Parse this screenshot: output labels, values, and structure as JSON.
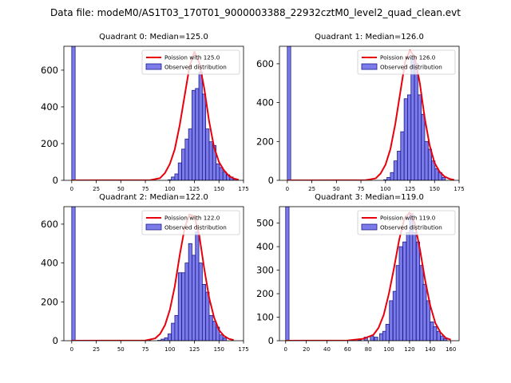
{
  "figure": {
    "suptitle": "Data file: modeM0/AS1T03_170T01_9000003388_22932cztM0_level2_quad_clean.evt"
  },
  "colors": {
    "bar_fill": "#7b7bea",
    "bar_edge": "#1a1a8c",
    "curve": "#e8000b"
  },
  "chart_data": [
    {
      "type": "bar",
      "title": "Quadrant 0: Median=125.0",
      "xlim": [
        -8,
        175
      ],
      "ylim": [
        0,
        730
      ],
      "xticks": [
        0,
        25,
        50,
        75,
        100,
        125,
        150,
        175
      ],
      "yticks": [
        0,
        200,
        400,
        600
      ],
      "bin_width": 3.5,
      "bins": [
        [
          0,
          730
        ],
        [
          98,
          3
        ],
        [
          101.5,
          18
        ],
        [
          105,
          35
        ],
        [
          108.5,
          95
        ],
        [
          112,
          170
        ],
        [
          115.5,
          225
        ],
        [
          119,
          280
        ],
        [
          122.5,
          490
        ],
        [
          126,
          500
        ],
        [
          129.5,
          590
        ],
        [
          133,
          470
        ],
        [
          136.5,
          280
        ],
        [
          140,
          210
        ],
        [
          143.5,
          190
        ],
        [
          147,
          90
        ],
        [
          150.5,
          70
        ],
        [
          154,
          45
        ],
        [
          157.5,
          30
        ],
        [
          161,
          18
        ],
        [
          164.5,
          8
        ]
      ],
      "curve_points": [
        [
          0,
          0
        ],
        [
          80,
          1
        ],
        [
          90,
          12
        ],
        [
          95,
          40
        ],
        [
          100,
          90
        ],
        [
          105,
          170
        ],
        [
          110,
          300
        ],
        [
          115,
          460
        ],
        [
          120,
          620
        ],
        [
          125,
          700
        ],
        [
          130,
          640
        ],
        [
          135,
          500
        ],
        [
          140,
          320
        ],
        [
          145,
          180
        ],
        [
          150,
          100
        ],
        [
          155,
          55
        ],
        [
          160,
          25
        ],
        [
          165,
          10
        ],
        [
          170,
          3
        ]
      ],
      "legend": {
        "curve_label": "Poission with 125.0",
        "bar_label": "Observed distribution"
      }
    },
    {
      "type": "bar",
      "title": "Quadrant 1: Median=126.0",
      "xlim": [
        -8,
        175
      ],
      "ylim": [
        0,
        690
      ],
      "xticks": [
        0,
        25,
        50,
        75,
        100,
        125,
        150,
        175
      ],
      "yticks": [
        0,
        200,
        400,
        600
      ],
      "bin_width": 3.5,
      "bins": [
        [
          0,
          690
        ],
        [
          98,
          3
        ],
        [
          101.5,
          15
        ],
        [
          105,
          40
        ],
        [
          108.5,
          100
        ],
        [
          112,
          150
        ],
        [
          115.5,
          250
        ],
        [
          119,
          420
        ],
        [
          122.5,
          440
        ],
        [
          126,
          630
        ],
        [
          129.5,
          600
        ],
        [
          133,
          440
        ],
        [
          136.5,
          340
        ],
        [
          140,
          200
        ],
        [
          143.5,
          160
        ],
        [
          147,
          100
        ],
        [
          150.5,
          60
        ],
        [
          154,
          40
        ],
        [
          157.5,
          15
        ]
      ],
      "curve_points": [
        [
          0,
          0
        ],
        [
          80,
          1
        ],
        [
          90,
          10
        ],
        [
          95,
          35
        ],
        [
          100,
          80
        ],
        [
          105,
          160
        ],
        [
          110,
          290
        ],
        [
          115,
          450
        ],
        [
          120,
          610
        ],
        [
          125,
          670
        ],
        [
          130,
          630
        ],
        [
          135,
          500
        ],
        [
          140,
          320
        ],
        [
          145,
          180
        ],
        [
          150,
          90
        ],
        [
          155,
          45
        ],
        [
          160,
          20
        ],
        [
          165,
          8
        ],
        [
          170,
          2
        ]
      ],
      "legend": {
        "curve_label": "Poission with 126.0",
        "bar_label": "Observed distribution"
      }
    },
    {
      "type": "bar",
      "title": "Quadrant 2: Median=122.0",
      "xlim": [
        -8,
        175
      ],
      "ylim": [
        0,
        690
      ],
      "xticks": [
        0,
        25,
        50,
        75,
        100,
        125,
        150,
        175
      ],
      "yticks": [
        0,
        200,
        400,
        600
      ],
      "bin_width": 3.5,
      "bins": [
        [
          0,
          690
        ],
        [
          77,
          3
        ],
        [
          87.5,
          2
        ],
        [
          91,
          8
        ],
        [
          94.5,
          15
        ],
        [
          98,
          35
        ],
        [
          101.5,
          90
        ],
        [
          105,
          130
        ],
        [
          108.5,
          350
        ],
        [
          112,
          350
        ],
        [
          115.5,
          400
        ],
        [
          119,
          500
        ],
        [
          122.5,
          440
        ],
        [
          126,
          560
        ],
        [
          129.5,
          400
        ],
        [
          133,
          290
        ],
        [
          136.5,
          250
        ],
        [
          140,
          130
        ],
        [
          143.5,
          100
        ],
        [
          147,
          70
        ],
        [
          150.5,
          30
        ],
        [
          154,
          15
        ]
      ],
      "curve_points": [
        [
          0,
          0
        ],
        [
          75,
          1
        ],
        [
          85,
          12
        ],
        [
          90,
          35
        ],
        [
          95,
          80
        ],
        [
          100,
          160
        ],
        [
          105,
          280
        ],
        [
          110,
          440
        ],
        [
          115,
          580
        ],
        [
          120,
          650
        ],
        [
          125,
          640
        ],
        [
          130,
          540
        ],
        [
          135,
          370
        ],
        [
          140,
          220
        ],
        [
          145,
          120
        ],
        [
          150,
          55
        ],
        [
          155,
          25
        ],
        [
          160,
          10
        ],
        [
          165,
          3
        ]
      ],
      "legend": {
        "curve_label": "Poission with 122.0",
        "bar_label": "Observed distribution"
      }
    },
    {
      "type": "bar",
      "title": "Quadrant 3: Median=119.0",
      "xlim": [
        -6,
        168
      ],
      "ylim": [
        0,
        570
      ],
      "xticks": [
        0,
        20,
        40,
        60,
        80,
        100,
        120,
        140,
        160
      ],
      "yticks": [
        0,
        100,
        200,
        300,
        400,
        500
      ],
      "bin_width": 3.3,
      "bins": [
        [
          0,
          570
        ],
        [
          50,
          2
        ],
        [
          70,
          3
        ],
        [
          76,
          15
        ],
        [
          82,
          20
        ],
        [
          86,
          15
        ],
        [
          91,
          30
        ],
        [
          94,
          40
        ],
        [
          97,
          70
        ],
        [
          100.5,
          170
        ],
        [
          104,
          210
        ],
        [
          107,
          320
        ],
        [
          110,
          400
        ],
        [
          113.5,
          420
        ],
        [
          117,
          460
        ],
        [
          120,
          540
        ],
        [
          123,
          460
        ],
        [
          126.5,
          420
        ],
        [
          130,
          320
        ],
        [
          133,
          240
        ],
        [
          136.5,
          170
        ],
        [
          140,
          80
        ],
        [
          143,
          60
        ],
        [
          146.5,
          40
        ],
        [
          150,
          20
        ],
        [
          153,
          8
        ]
      ],
      "curve_points": [
        [
          0,
          0
        ],
        [
          60,
          1
        ],
        [
          75,
          8
        ],
        [
          85,
          25
        ],
        [
          90,
          55
        ],
        [
          95,
          110
        ],
        [
          100,
          200
        ],
        [
          105,
          310
        ],
        [
          110,
          430
        ],
        [
          115,
          520
        ],
        [
          120,
          545
        ],
        [
          125,
          500
        ],
        [
          130,
          390
        ],
        [
          135,
          260
        ],
        [
          140,
          150
        ],
        [
          145,
          75
        ],
        [
          150,
          35
        ],
        [
          155,
          12
        ],
        [
          160,
          4
        ]
      ],
      "legend": {
        "curve_label": "Poission with 119.0",
        "bar_label": "Observed distribution"
      }
    }
  ]
}
